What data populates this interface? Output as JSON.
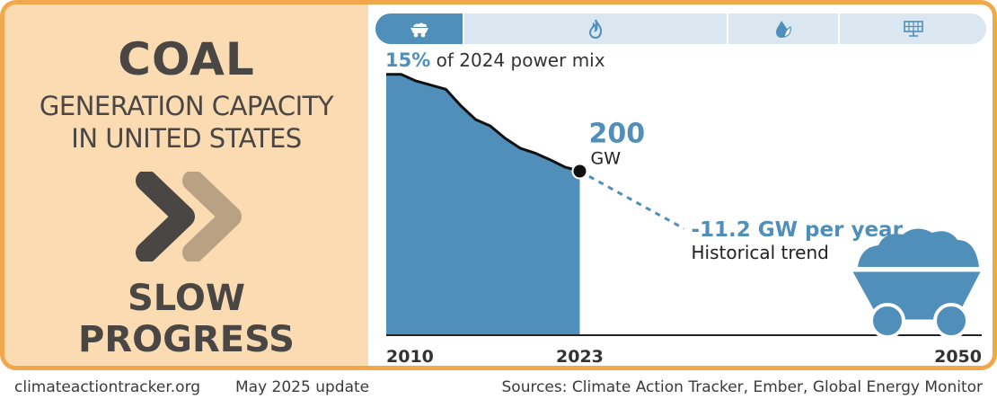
{
  "sector": "COAL",
  "subtitle_lines": [
    "GENERATION CAPACITY",
    "IN UNITED STATES"
  ],
  "status_lines": [
    "SLOW",
    "PROGRESS"
  ],
  "tabs": [
    {
      "name": "coal",
      "icon": "coal-cart-icon",
      "active": true
    },
    {
      "name": "gas",
      "icon": "flame-icon",
      "active": false
    },
    {
      "name": "oil",
      "icon": "droplet-leaf-icon",
      "active": false
    },
    {
      "name": "solar",
      "icon": "solar-panel-icon",
      "active": false
    }
  ],
  "share": {
    "value": "15%",
    "text": "of 2024 power mix"
  },
  "colors": {
    "accent": "#4f8fba",
    "panel_bg": "#fbdcb2",
    "border": "#f2a84a",
    "text_dark": "#4a4644",
    "chevron_dark": "#4a4644",
    "chevron_light": "#b9a184",
    "tab_inactive": "#dbe7f0"
  },
  "chart_data": {
    "type": "area",
    "x": [
      2010,
      2011,
      2012,
      2013,
      2014,
      2015,
      2016,
      2017,
      2018,
      2019,
      2020,
      2021,
      2022,
      2023
    ],
    "values": [
      318,
      318,
      310,
      305,
      300,
      280,
      263,
      255,
      240,
      228,
      222,
      214,
      205,
      200
    ],
    "ylim": [
      0,
      320
    ],
    "xlim": [
      2010,
      2050
    ],
    "x_tick_labels": [
      "2010",
      "2023",
      "2050"
    ],
    "current_value": "200",
    "current_unit": "GW",
    "trend_rate": -11.2,
    "trend_label": "-11.2 GW per year",
    "trend_sublabel": "Historical trend",
    "trend_end": {
      "x": 2030,
      "y": 130
    }
  },
  "footer": {
    "site": "climateactiontracker.org",
    "update": "May 2025 update",
    "sources": "Sources: Climate Action Tracker, Ember, Global Energy Monitor"
  }
}
